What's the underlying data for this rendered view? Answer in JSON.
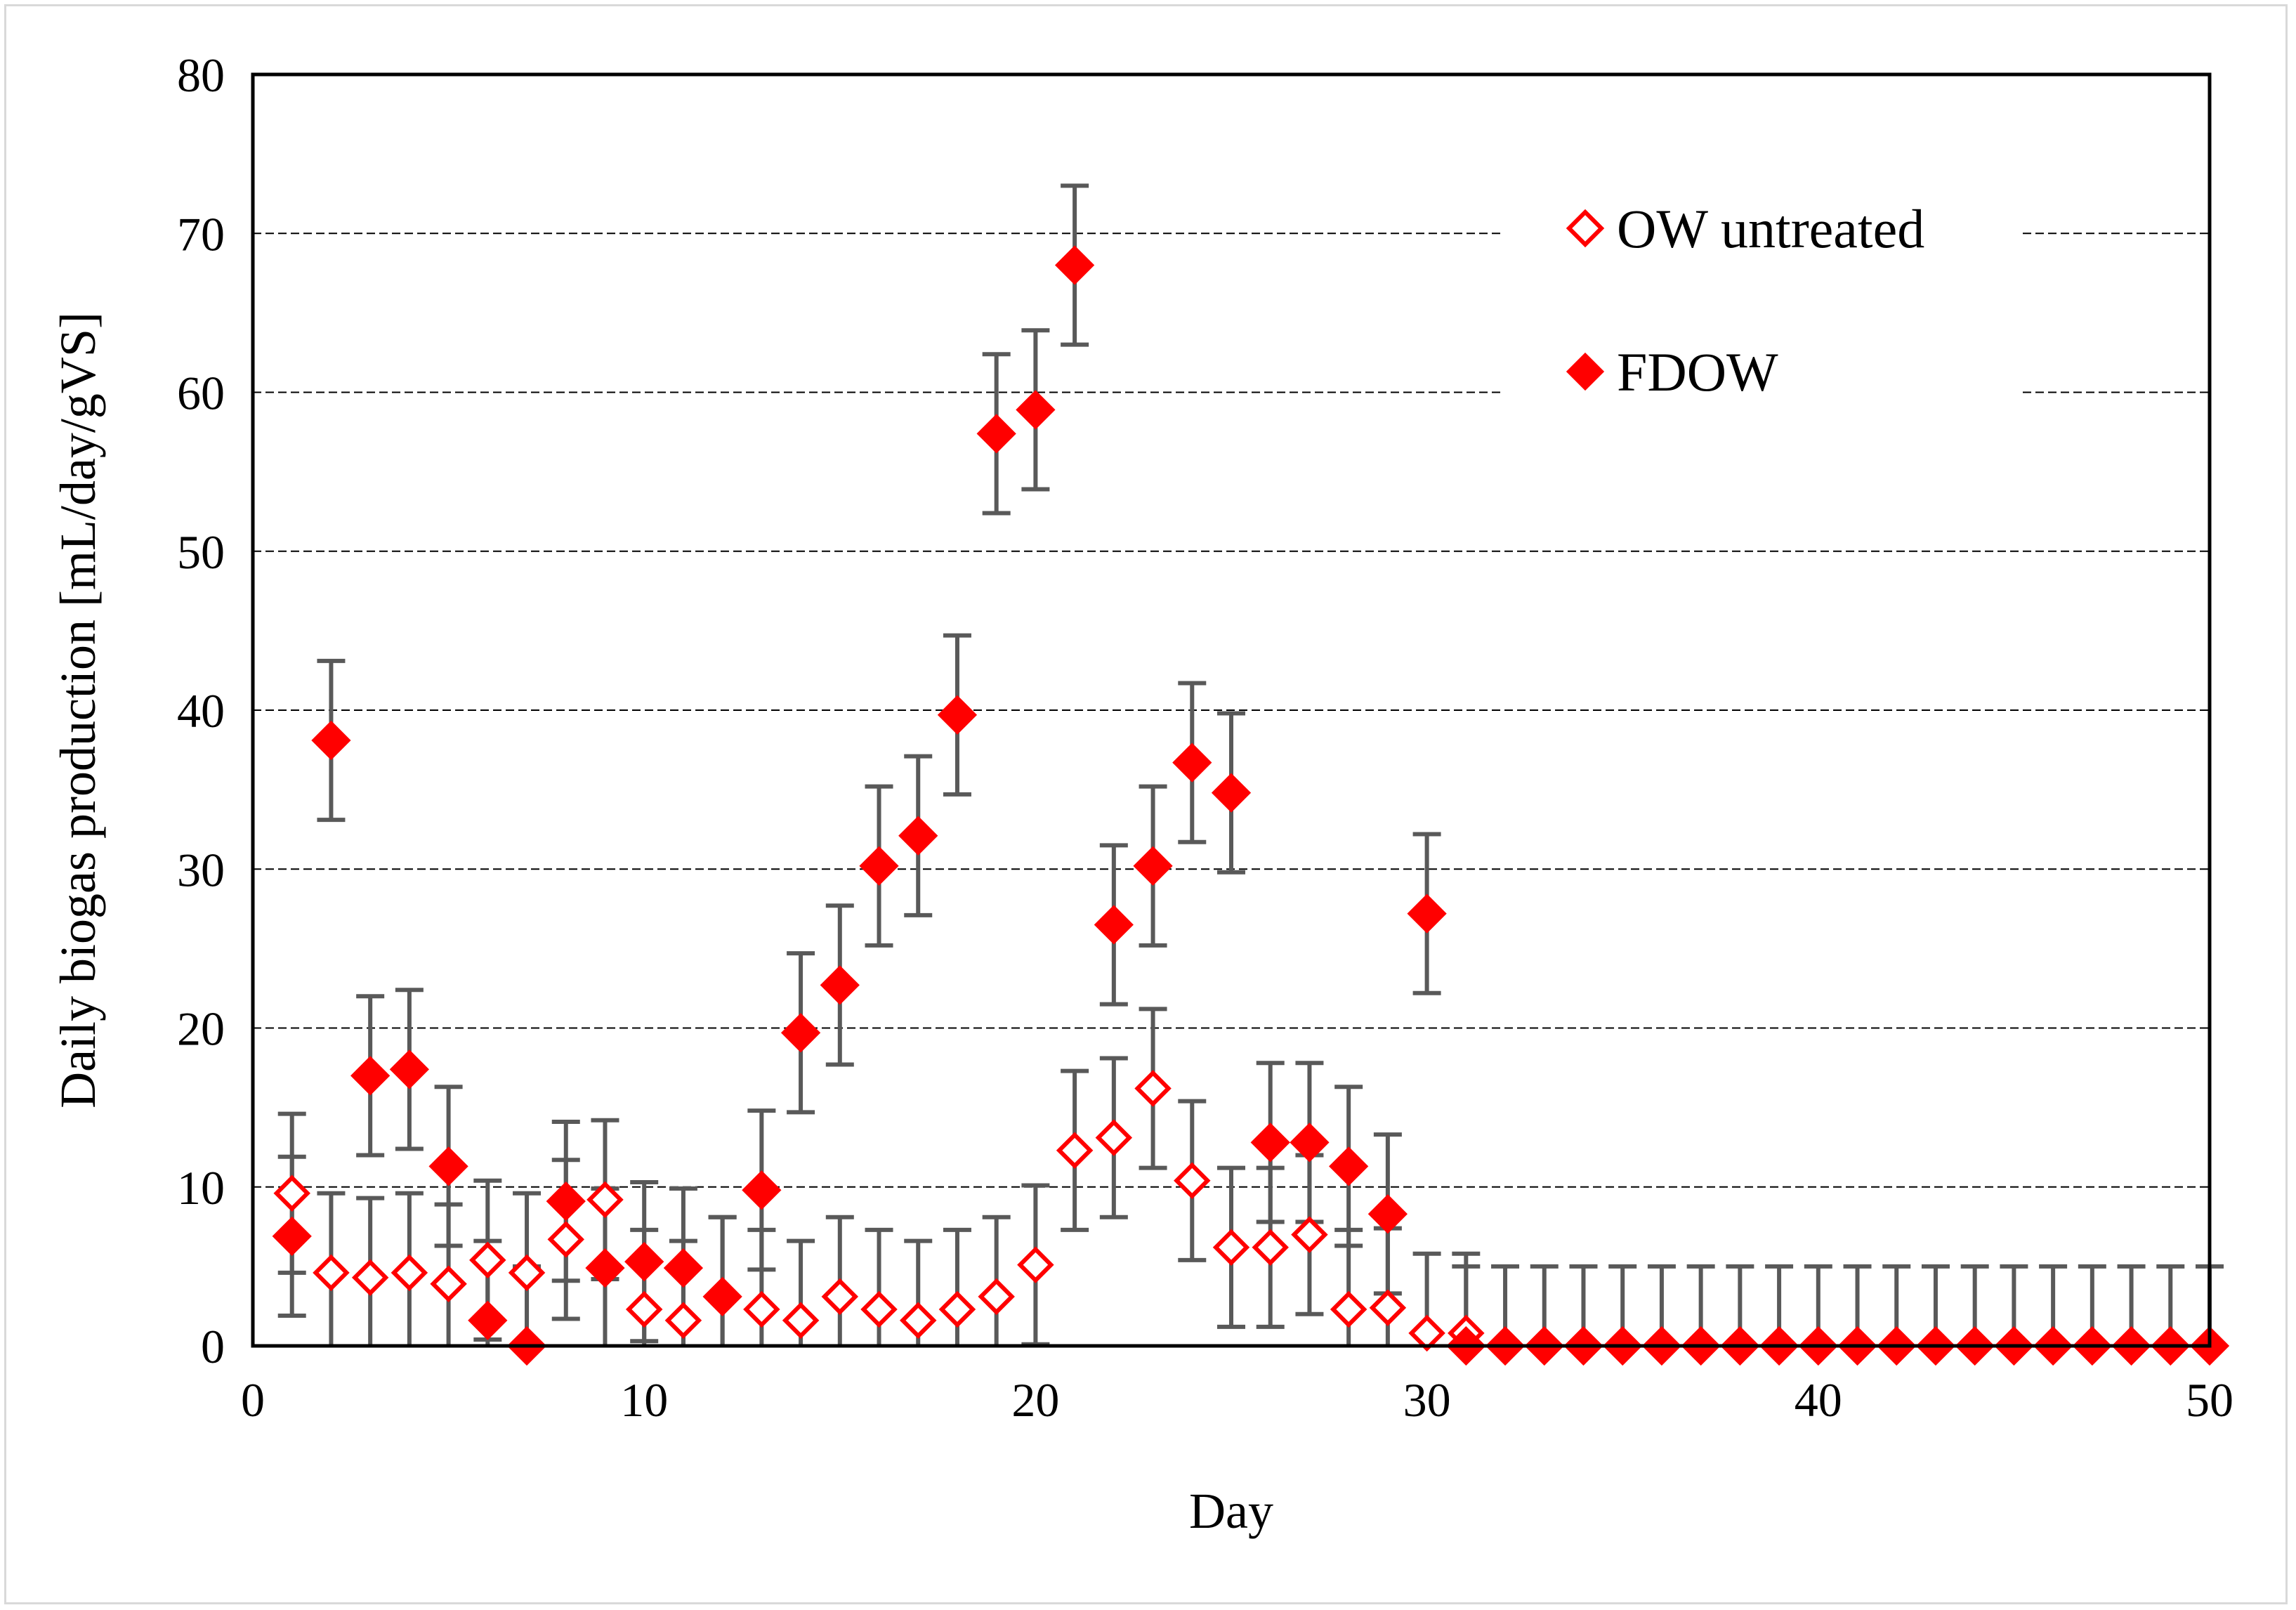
{
  "chart_data": {
    "type": "scatter",
    "title": "",
    "xlabel": "Day",
    "ylabel": "Daily biogas production [mL/day/gVS]",
    "xlim": [
      0,
      50
    ],
    "ylim": [
      0,
      80
    ],
    "x_ticks": [
      0,
      10,
      20,
      30,
      40,
      50
    ],
    "y_ticks": [
      0,
      10,
      20,
      30,
      40,
      50,
      60,
      70,
      80
    ],
    "x_tick_labels": [
      "0",
      "10",
      "20",
      "30",
      "40",
      "50"
    ],
    "y_tick_labels": [
      "0",
      "10",
      "20",
      "30",
      "40",
      "50",
      "60",
      "70",
      "80"
    ],
    "grid": "horizontal dashed",
    "legend_position": "top-right",
    "error_bar_color": "#595959",
    "series": [
      {
        "name": "OW untreated",
        "marker": "diamond-open",
        "color": "#ff0000",
        "x": [
          1,
          2,
          3,
          4,
          5,
          6,
          7,
          8,
          9,
          10,
          11,
          12,
          13,
          14,
          15,
          16,
          17,
          18,
          19,
          20,
          21,
          22,
          23,
          24,
          25,
          26,
          27,
          28,
          29,
          30,
          31
        ],
        "y": [
          9.6,
          4.6,
          4.3,
          4.6,
          3.9,
          5.4,
          4.6,
          6.7,
          9.2,
          2.3,
          1.6,
          3.1,
          2.3,
          1.6,
          3.1,
          2.3,
          1.6,
          2.3,
          3.1,
          5.1,
          12.3,
          13.1,
          16.2,
          10.4,
          6.2,
          6.2,
          7.0,
          2.3,
          2.4,
          0.8,
          0.8
        ],
        "error": [
          5.0,
          5.0,
          5.0,
          5.0,
          5.0,
          5.0,
          5.0,
          5.0,
          5.0,
          5.0,
          5.0,
          5.0,
          5.0,
          5.0,
          5.0,
          5.0,
          5.0,
          5.0,
          5.0,
          5.0,
          5.0,
          5.0,
          5.0,
          5.0,
          5.0,
          5.0,
          5.0,
          5.0,
          5.0,
          5.0,
          5.0
        ]
      },
      {
        "name": "FDOW",
        "marker": "diamond-filled",
        "color": "#ff0000",
        "x": [
          1,
          2,
          3,
          4,
          5,
          6,
          7,
          8,
          9,
          10,
          11,
          12,
          13,
          14,
          15,
          16,
          17,
          18,
          19,
          20,
          21,
          22,
          23,
          24,
          25,
          26,
          27,
          28,
          29,
          30,
          31,
          32,
          33,
          34,
          35,
          36,
          37,
          38,
          39,
          40,
          41,
          42,
          43,
          44,
          45,
          46,
          47,
          48,
          49,
          50
        ],
        "y": [
          6.9,
          38.1,
          17.0,
          17.4,
          11.3,
          1.6,
          0.0,
          9.1,
          4.9,
          5.3,
          4.9,
          3.1,
          9.8,
          19.7,
          22.7,
          30.2,
          32.1,
          39.7,
          57.4,
          58.9,
          68.0,
          26.5,
          30.2,
          36.7,
          34.8,
          12.8,
          12.8,
          11.3,
          8.3,
          27.2,
          0.0,
          0.0,
          0.0,
          0.0,
          0.0,
          0.0,
          0.0,
          0.0,
          0.0,
          0.0,
          0.0,
          0.0,
          0.0,
          0.0,
          0.0,
          0.0,
          0.0,
          0.0,
          0.0,
          0.0
        ],
        "error": [
          5.0,
          5.0,
          5.0,
          5.0,
          5.0,
          5.0,
          5.0,
          5.0,
          5.0,
          5.0,
          5.0,
          5.0,
          5.0,
          5.0,
          5.0,
          5.0,
          5.0,
          5.0,
          5.0,
          5.0,
          5.0,
          5.0,
          5.0,
          5.0,
          5.0,
          5.0,
          5.0,
          5.0,
          5.0,
          5.0,
          5.0,
          5.0,
          5.0,
          5.0,
          5.0,
          5.0,
          5.0,
          5.0,
          5.0,
          5.0,
          5.0,
          5.0,
          5.0,
          5.0,
          5.0,
          5.0,
          5.0,
          5.0,
          5.0,
          5.0
        ]
      }
    ]
  }
}
